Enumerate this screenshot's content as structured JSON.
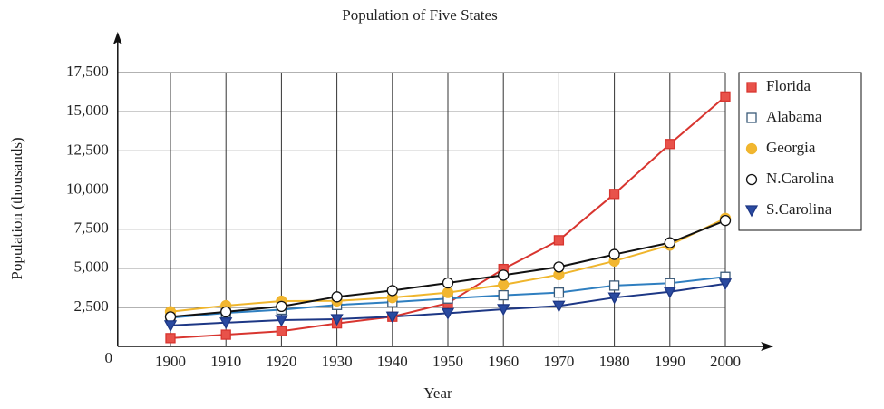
{
  "chart_data": {
    "type": "line",
    "title": "Population of Five States",
    "x_label": "Year",
    "y_label": "Population (thousands)",
    "x": [
      1900,
      1910,
      1920,
      1930,
      1940,
      1950,
      1960,
      1970,
      1980,
      1990,
      2000
    ],
    "xlim": [
      1890,
      2010
    ],
    "xticks": [
      1900,
      1910,
      1920,
      1930,
      1940,
      1950,
      1960,
      1970,
      1980,
      1990,
      2000
    ],
    "ylim": [
      0,
      20000
    ],
    "yticks": [
      0,
      {
        "value": 2500,
        "label": "2,500"
      },
      {
        "value": 5000,
        "label": "5,000"
      },
      {
        "value": 7500,
        "label": "7,500"
      },
      {
        "value": 10000,
        "label": "10,000"
      },
      {
        "value": 12500,
        "label": "12,500"
      },
      {
        "value": 15000,
        "label": "15,000"
      },
      {
        "value": 17500,
        "label": "17,500"
      }
    ],
    "grid": true,
    "legend": "right",
    "series": [
      {
        "name": "Florida",
        "color": "#d8352f",
        "marker": "square",
        "marker_fill": "#e8524a",
        "values": [
          530,
          750,
          970,
          1470,
          1900,
          2770,
          4950,
          6790,
          9750,
          12940,
          15980
        ]
      },
      {
        "name": "Alabama",
        "color": "#2f7fc0",
        "marker": "square",
        "marker_fill": "#ffffff",
        "values": [
          1830,
          2140,
          2350,
          2650,
          2830,
          3060,
          3270,
          3440,
          3890,
          4040,
          4450
        ]
      },
      {
        "name": "Georgia",
        "color": "#efb52c",
        "marker": "circle",
        "marker_fill": "#f2b630",
        "values": [
          2220,
          2610,
          2900,
          2910,
          3120,
          3440,
          3940,
          4590,
          5460,
          6480,
          8190
        ]
      },
      {
        "name": "N.Carolina",
        "color": "#111111",
        "marker": "circle",
        "marker_fill": "#ffffff",
        "values": [
          1890,
          2210,
          2560,
          3170,
          3570,
          4060,
          4560,
          5080,
          5880,
          6630,
          8050
        ]
      },
      {
        "name": "S.Carolina",
        "color": "#1d3785",
        "marker": "triangle",
        "marker_fill": "#2a4aa0",
        "values": [
          1340,
          1520,
          1680,
          1740,
          1900,
          2120,
          2380,
          2590,
          3120,
          3490,
          4010
        ]
      }
    ]
  }
}
